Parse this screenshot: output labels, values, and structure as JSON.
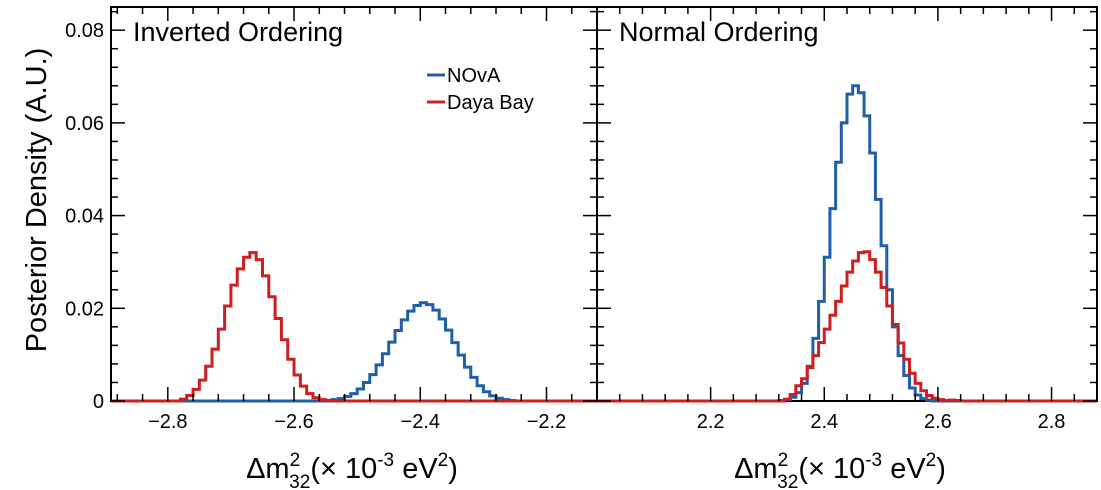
{
  "chart_data": {
    "type": "histogram",
    "ylabel": "Posterior Density (A.U.)",
    "ylim": [
      0,
      0.085
    ],
    "y_ticks": [
      {
        "value": 0,
        "label": "0"
      },
      {
        "value": 0.02,
        "label": "0.02"
      },
      {
        "value": 0.04,
        "label": "0.04"
      },
      {
        "value": 0.06,
        "label": "0.06"
      },
      {
        "value": 0.08,
        "label": "0.08"
      }
    ],
    "legend": [
      {
        "name": "NOvA",
        "color": "#1f5fa8"
      },
      {
        "name": "Daya Bay",
        "color": "#cc1f1f"
      }
    ],
    "panels": [
      {
        "title": "Inverted Ordering",
        "xlabel": {
          "prefix": "Δm",
          "sup": "2",
          "sub": "32",
          "middle": "(× 10",
          "exp": "-3",
          "unit": " eV",
          "unit_sup": "2",
          "end": ")"
        },
        "xlim": [
          -2.89,
          -2.12
        ],
        "x_ticks": [
          {
            "value": -2.8,
            "label": "−2.8"
          },
          {
            "value": -2.6,
            "label": "−2.6"
          },
          {
            "value": -2.4,
            "label": "−2.4"
          },
          {
            "value": -2.2,
            "label": "−2.2"
          }
        ],
        "bin_width": 0.01,
        "series": [
          {
            "name": "NOvA",
            "color": "#1f5fa8",
            "x_start": -2.89,
            "values": [
              0,
              0,
              0,
              0,
              0,
              0,
              0,
              0,
              0,
              0,
              0,
              0,
              0,
              0,
              0,
              0,
              0,
              0,
              0,
              0,
              0,
              0,
              0,
              0,
              0,
              0,
              0,
              0,
              0,
              0,
              0,
              0,
              0,
              0,
              0,
              0.0003,
              0.0005,
              0.001,
              0.0016,
              0.0026,
              0.004,
              0.0057,
              0.0078,
              0.0102,
              0.0127,
              0.0152,
              0.0175,
              0.0194,
              0.0206,
              0.0212,
              0.0208,
              0.0196,
              0.0177,
              0.0153,
              0.0126,
              0.0099,
              0.0073,
              0.0051,
              0.0033,
              0.002,
              0.0011,
              0.0006,
              0.0003,
              0.0001,
              0,
              0,
              0,
              0,
              0,
              0,
              0,
              0,
              0,
              0,
              0,
              0,
              0
            ]
          },
          {
            "name": "Daya Bay",
            "color": "#cc1f1f",
            "x_start": -2.89,
            "values": [
              0,
              0,
              0,
              0,
              0,
              0,
              0,
              0,
              0,
              0,
              0,
              0.0004,
              0.0012,
              0.0025,
              0.0045,
              0.0075,
              0.0112,
              0.0155,
              0.0205,
              0.025,
              0.0285,
              0.031,
              0.032,
              0.0305,
              0.027,
              0.0225,
              0.0178,
              0.0132,
              0.009,
              0.0056,
              0.0032,
              0.0016,
              0.0007,
              0.0003,
              0.0001,
              0,
              0,
              0,
              0,
              0,
              0,
              0,
              0,
              0,
              0,
              0,
              0,
              0,
              0,
              0,
              0,
              0,
              0,
              0,
              0,
              0,
              0,
              0,
              0,
              0,
              0,
              0,
              0,
              0,
              0,
              0,
              0,
              0,
              0,
              0,
              0,
              0,
              0,
              0,
              0,
              0,
              0
            ]
          }
        ]
      },
      {
        "title": "Normal Ordering",
        "xlabel": {
          "prefix": "Δm",
          "sup": "2",
          "sub": "32",
          "middle": "(× 10",
          "exp": "-3",
          "unit": " eV",
          "unit_sup": "2",
          "end": ")"
        },
        "xlim": [
          2.0,
          2.88
        ],
        "x_ticks": [
          {
            "value": 2.2,
            "label": "2.2"
          },
          {
            "value": 2.4,
            "label": "2.4"
          },
          {
            "value": 2.6,
            "label": "2.6"
          },
          {
            "value": 2.8,
            "label": "2.8"
          }
        ],
        "bin_width": 0.01,
        "series": [
          {
            "name": "NOvA",
            "color": "#1f5fa8",
            "x_start": 2.0,
            "values": [
              0,
              0,
              0,
              0,
              0,
              0,
              0,
              0,
              0,
              0,
              0,
              0,
              0,
              0,
              0,
              0,
              0,
              0,
              0,
              0,
              0,
              0,
              0,
              0,
              0,
              0,
              0,
              0,
              0,
              0,
              0,
              0,
              0.0001,
              0.0003,
              0.0008,
              0.0018,
              0.0038,
              0.0075,
              0.0135,
              0.0215,
              0.031,
              0.0415,
              0.0515,
              0.06,
              0.0662,
              0.068,
              0.0665,
              0.0615,
              0.0535,
              0.0435,
              0.0335,
              0.024,
              0.016,
              0.0098,
              0.0055,
              0.0028,
              0.0013,
              0.0005,
              0.0002,
              0,
              0,
              0,
              0,
              0,
              0,
              0,
              0,
              0,
              0,
              0,
              0,
              0,
              0,
              0,
              0,
              0,
              0,
              0,
              0,
              0,
              0,
              0,
              0,
              0,
              0,
              0,
              0,
              0
            ]
          },
          {
            "name": "Daya Bay",
            "color": "#cc1f1f",
            "x_start": 2.0,
            "values": [
              0,
              0,
              0,
              0,
              0,
              0,
              0,
              0,
              0,
              0,
              0,
              0,
              0,
              0,
              0,
              0,
              0,
              0,
              0,
              0,
              0,
              0,
              0,
              0,
              0,
              0,
              0,
              0,
              0,
              0,
              0,
              0,
              0,
              0.0004,
              0.0014,
              0.0033,
              0.0048,
              0.0072,
              0.0098,
              0.0126,
              0.0155,
              0.0185,
              0.0215,
              0.0248,
              0.0278,
              0.0302,
              0.032,
              0.0322,
              0.0305,
              0.0278,
              0.0245,
              0.0205,
              0.0165,
              0.0125,
              0.009,
              0.006,
              0.0038,
              0.0022,
              0.0012,
              0.0006,
              0.0003,
              0.0001,
              0.0002,
              0.0001,
              0,
              0,
              0,
              0,
              0,
              0,
              0,
              0,
              0,
              0,
              0,
              0,
              0,
              0,
              0,
              0,
              0,
              0,
              0,
              0,
              0,
              0,
              0,
              0
            ]
          }
        ]
      }
    ]
  }
}
